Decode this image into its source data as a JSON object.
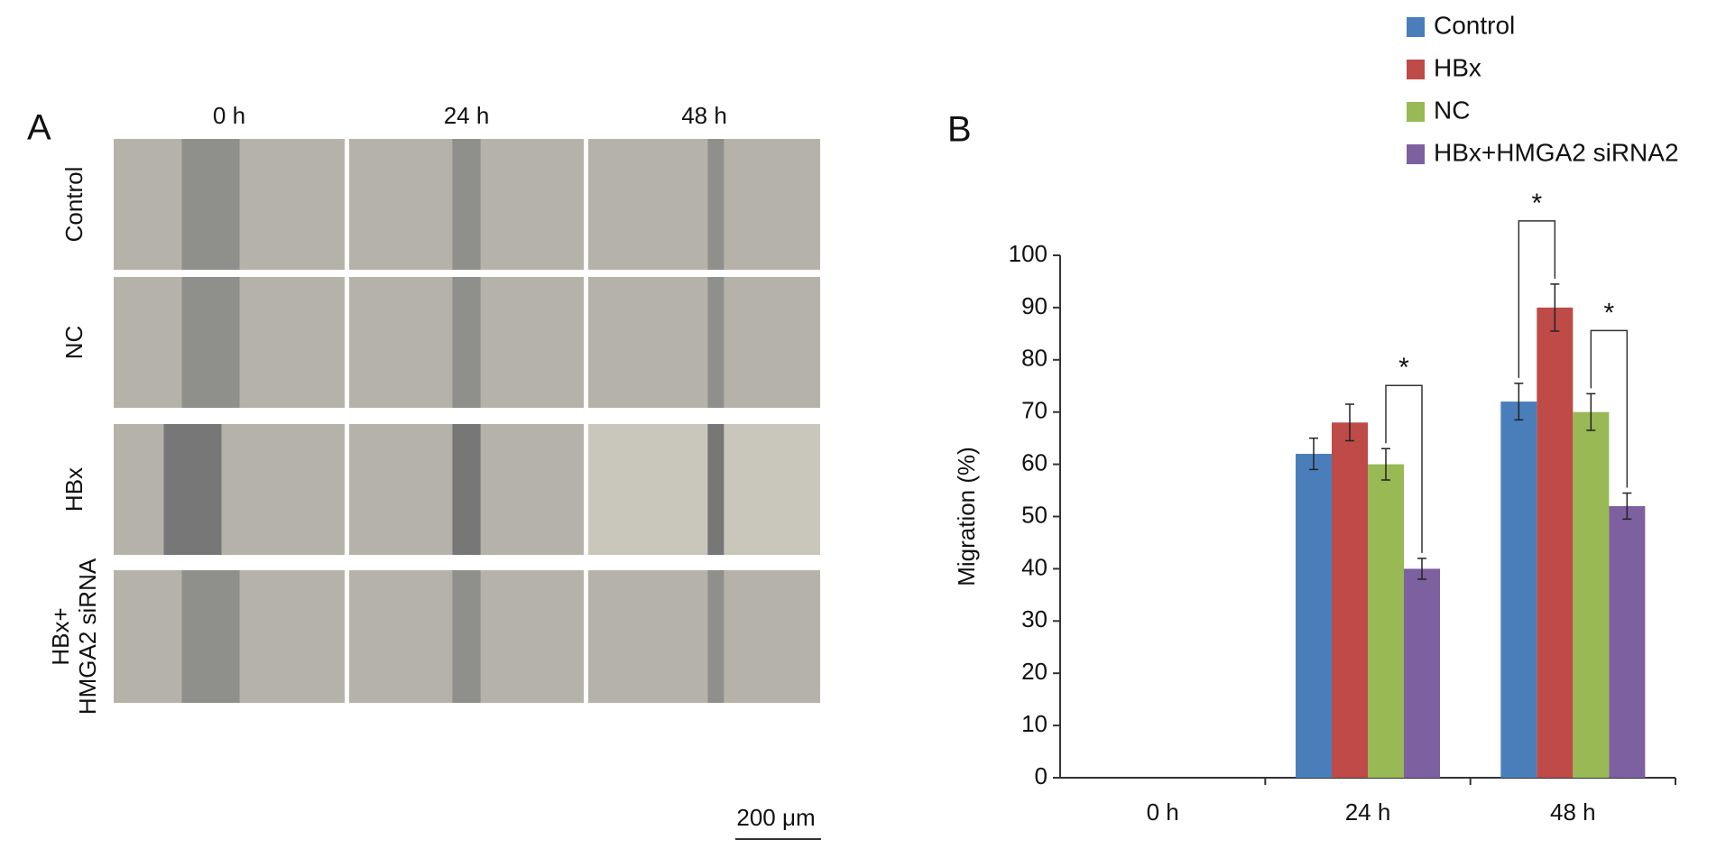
{
  "panel_a": {
    "label": "A",
    "columns": [
      "0 h",
      "24 h",
      "48 h"
    ],
    "rows": [
      [
        "Control"
      ],
      [
        "NC"
      ],
      [
        "HBx"
      ],
      [
        "HBx+",
        "HMGA2 siRNA"
      ]
    ],
    "scale_bar": "200 μm"
  },
  "chart_data": {
    "type": "bar",
    "label": "B",
    "ylabel": "Migration (%)",
    "categories": [
      "0 h",
      "24 h",
      "48 h"
    ],
    "series": [
      {
        "name": "Control",
        "color": "#4a7ebb",
        "values": [
          null,
          62,
          72
        ],
        "errors": [
          null,
          3,
          3.5
        ]
      },
      {
        "name": "HBx",
        "color": "#be4b48",
        "values": [
          null,
          68,
          90
        ],
        "errors": [
          null,
          3.5,
          4.5
        ]
      },
      {
        "name": "NC",
        "color": "#98b954",
        "values": [
          null,
          60,
          70
        ],
        "errors": [
          null,
          3,
          3.5
        ]
      },
      {
        "name": "HBx+HMGA2 siRNA2",
        "color": "#7d60a0",
        "values": [
          null,
          40,
          52
        ],
        "errors": [
          null,
          2,
          2.5
        ]
      }
    ],
    "annotations": [
      {
        "text": "*",
        "category": 1,
        "from": 2,
        "to": 3
      },
      {
        "text": "*",
        "category": 2,
        "from": 0,
        "to": 1
      },
      {
        "text": "*",
        "category": 2,
        "from": 2,
        "to": 3
      }
    ],
    "ylim": [
      0,
      100
    ],
    "yticks": [
      0,
      10,
      20,
      30,
      40,
      50,
      60,
      70,
      80,
      90,
      100
    ],
    "legend": "top-right"
  }
}
